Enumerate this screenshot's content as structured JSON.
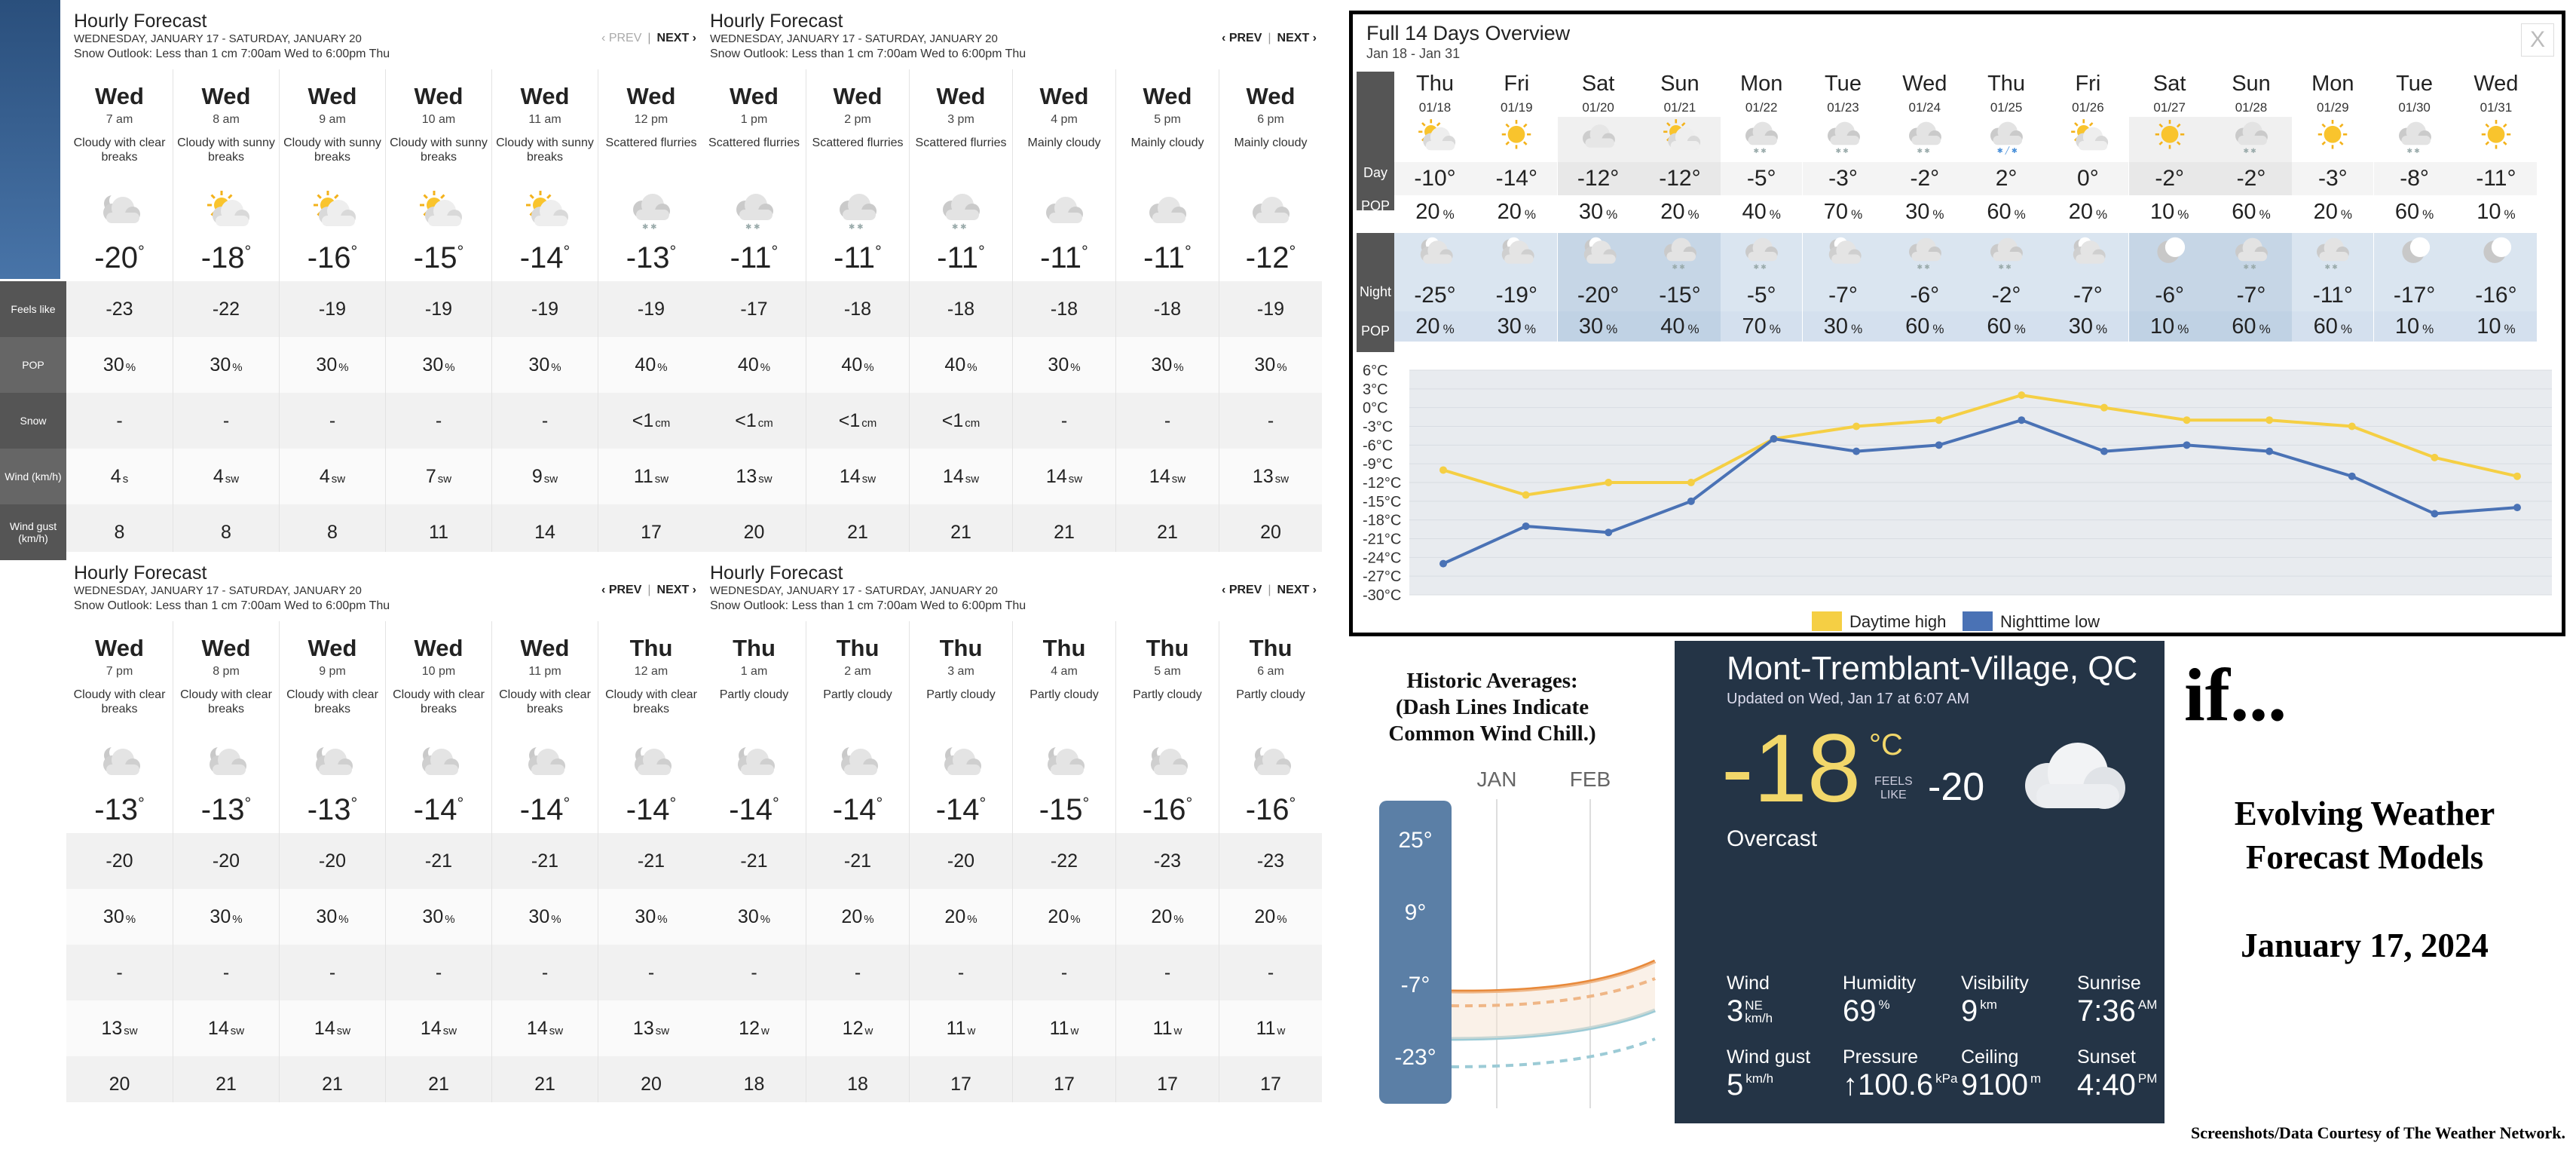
{
  "panel_common": {
    "title": "Hourly Forecast",
    "dates": "WEDNESDAY, JANUARY 17 - SATURDAY, JANUARY 20",
    "snow_outlook": "Snow Outlook: Less than 1 cm 7:00am Wed to 6:00pm Thu",
    "prev": "‹ PREV",
    "next": "NEXT ›",
    "sep": "|"
  },
  "row_labels": {
    "feels_like": "Feels like",
    "pop": "POP",
    "snow": "Snow",
    "wind": "Wind (km/h)",
    "wind_gust": "Wind gust (km/h)"
  },
  "panels": [
    {
      "hours": [
        {
          "day": "Wed",
          "time": "7 am",
          "cond": "Cloudy with clear breaks",
          "icon": "partly-cloudy-night-icon",
          "temp": "-20",
          "feels": "-23",
          "pop": "30",
          "snow": "-",
          "wind": "4",
          "dir": "s",
          "gust": "8"
        },
        {
          "day": "Wed",
          "time": "8 am",
          "cond": "Cloudy with sunny breaks",
          "icon": "partly-sunny-icon",
          "temp": "-18",
          "feels": "-22",
          "pop": "30",
          "snow": "-",
          "wind": "4",
          "dir": "sw",
          "gust": "8"
        },
        {
          "day": "Wed",
          "time": "9 am",
          "cond": "Cloudy with sunny breaks",
          "icon": "partly-sunny-icon",
          "temp": "-16",
          "feels": "-19",
          "pop": "30",
          "snow": "-",
          "wind": "4",
          "dir": "sw",
          "gust": "8"
        },
        {
          "day": "Wed",
          "time": "10 am",
          "cond": "Cloudy with sunny breaks",
          "icon": "partly-sunny-icon",
          "temp": "-15",
          "feels": "-19",
          "pop": "30",
          "snow": "-",
          "wind": "7",
          "dir": "sw",
          "gust": "11"
        },
        {
          "day": "Wed",
          "time": "11 am",
          "cond": "Cloudy with sunny breaks",
          "icon": "partly-sunny-icon",
          "temp": "-14",
          "feels": "-19",
          "pop": "30",
          "snow": "-",
          "wind": "9",
          "dir": "sw",
          "gust": "14"
        },
        {
          "day": "Wed",
          "time": "12 pm",
          "cond": "Scattered flurries",
          "icon": "flurries-icon",
          "temp": "-13",
          "feels": "-19",
          "pop": "40",
          "snow": "<1",
          "snowunit": "cm",
          "wind": "11",
          "dir": "sw",
          "gust": "17"
        }
      ]
    },
    {
      "hours": [
        {
          "day": "Wed",
          "time": "1 pm",
          "cond": "Scattered flurries",
          "icon": "flurries-icon",
          "temp": "-11",
          "feels": "-17",
          "pop": "40",
          "snow": "<1",
          "snowunit": "cm",
          "wind": "13",
          "dir": "sw",
          "gust": "20"
        },
        {
          "day": "Wed",
          "time": "2 pm",
          "cond": "Scattered flurries",
          "icon": "flurries-icon",
          "temp": "-11",
          "feels": "-18",
          "pop": "40",
          "snow": "<1",
          "snowunit": "cm",
          "wind": "14",
          "dir": "sw",
          "gust": "21"
        },
        {
          "day": "Wed",
          "time": "3 pm",
          "cond": "Scattered flurries",
          "icon": "flurries-icon",
          "temp": "-11",
          "feels": "-18",
          "pop": "40",
          "snow": "<1",
          "snowunit": "cm",
          "wind": "14",
          "dir": "sw",
          "gust": "21"
        },
        {
          "day": "Wed",
          "time": "4 pm",
          "cond": "Mainly cloudy",
          "icon": "cloudy-icon",
          "temp": "-11",
          "feels": "-18",
          "pop": "30",
          "snow": "-",
          "wind": "14",
          "dir": "sw",
          "gust": "21"
        },
        {
          "day": "Wed",
          "time": "5 pm",
          "cond": "Mainly cloudy",
          "icon": "cloudy-icon",
          "temp": "-11",
          "feels": "-18",
          "pop": "30",
          "snow": "-",
          "wind": "14",
          "dir": "sw",
          "gust": "21"
        },
        {
          "day": "Wed",
          "time": "6 pm",
          "cond": "Mainly cloudy",
          "icon": "cloudy-icon",
          "temp": "-12",
          "feels": "-19",
          "pop": "30",
          "snow": "-",
          "wind": "13",
          "dir": "sw",
          "gust": "20"
        }
      ]
    },
    {
      "hours": [
        {
          "day": "Wed",
          "time": "7 pm",
          "cond": "Cloudy with clear breaks",
          "icon": "partly-cloudy-night-icon",
          "temp": "-13",
          "feels": "-20",
          "pop": "30",
          "snow": "-",
          "wind": "13",
          "dir": "sw",
          "gust": "20"
        },
        {
          "day": "Wed",
          "time": "8 pm",
          "cond": "Cloudy with clear breaks",
          "icon": "partly-cloudy-night-icon",
          "temp": "-13",
          "feels": "-20",
          "pop": "30",
          "snow": "-",
          "wind": "14",
          "dir": "sw",
          "gust": "21"
        },
        {
          "day": "Wed",
          "time": "9 pm",
          "cond": "Cloudy with clear breaks",
          "icon": "partly-cloudy-night-icon",
          "temp": "-13",
          "feels": "-20",
          "pop": "30",
          "snow": "-",
          "wind": "14",
          "dir": "sw",
          "gust": "21"
        },
        {
          "day": "Wed",
          "time": "10 pm",
          "cond": "Cloudy with clear breaks",
          "icon": "partly-cloudy-night-icon",
          "temp": "-14",
          "feels": "-21",
          "pop": "30",
          "snow": "-",
          "wind": "14",
          "dir": "sw",
          "gust": "21"
        },
        {
          "day": "Wed",
          "time": "11 pm",
          "cond": "Cloudy with clear breaks",
          "icon": "partly-cloudy-night-icon",
          "temp": "-14",
          "feels": "-21",
          "pop": "30",
          "snow": "-",
          "wind": "14",
          "dir": "sw",
          "gust": "21"
        },
        {
          "day": "Thu",
          "time": "12 am",
          "cond": "Cloudy with clear breaks",
          "icon": "partly-cloudy-night-icon",
          "temp": "-14",
          "feels": "-21",
          "pop": "30",
          "snow": "-",
          "wind": "13",
          "dir": "sw",
          "gust": "20"
        }
      ]
    },
    {
      "hours": [
        {
          "day": "Thu",
          "time": "1 am",
          "cond": "Partly cloudy",
          "icon": "partly-cloudy-night-icon",
          "temp": "-14",
          "feels": "-21",
          "pop": "30",
          "snow": "-",
          "wind": "12",
          "dir": "w",
          "gust": "18"
        },
        {
          "day": "Thu",
          "time": "2 am",
          "cond": "Partly cloudy",
          "icon": "partly-cloudy-night-icon",
          "temp": "-14",
          "feels": "-21",
          "pop": "20",
          "snow": "-",
          "wind": "12",
          "dir": "w",
          "gust": "18"
        },
        {
          "day": "Thu",
          "time": "3 am",
          "cond": "Partly cloudy",
          "icon": "partly-cloudy-night-icon",
          "temp": "-14",
          "feels": "-20",
          "pop": "20",
          "snow": "-",
          "wind": "11",
          "dir": "w",
          "gust": "17"
        },
        {
          "day": "Thu",
          "time": "4 am",
          "cond": "Partly cloudy",
          "icon": "partly-cloudy-night-icon",
          "temp": "-15",
          "feels": "-22",
          "pop": "20",
          "snow": "-",
          "wind": "11",
          "dir": "w",
          "gust": "17"
        },
        {
          "day": "Thu",
          "time": "5 am",
          "cond": "Partly cloudy",
          "icon": "partly-cloudy-night-icon",
          "temp": "-16",
          "feels": "-23",
          "pop": "20",
          "snow": "-",
          "wind": "11",
          "dir": "w",
          "gust": "17"
        },
        {
          "day": "Thu",
          "time": "6 am",
          "cond": "Partly cloudy",
          "icon": "partly-cloudy-night-icon",
          "temp": "-16",
          "feels": "-23",
          "pop": "20",
          "snow": "-",
          "wind": "11",
          "dir": "w",
          "gust": "17"
        }
      ]
    }
  ],
  "overview": {
    "title": "Full 14 Days Overview",
    "dates": "Jan 18 - Jan 31",
    "close": "X",
    "labels": {
      "day": "Day",
      "pop": "POP",
      "night": "Night"
    },
    "percent": "%",
    "days": [
      {
        "name": "Thu",
        "date": "01/18",
        "day_icon": "partly-sunny-icon",
        "high": "-10°",
        "day_pop": "20",
        "night_icon": "partly-cloudy-night-icon",
        "low": "-25°",
        "night_pop": "20"
      },
      {
        "name": "Fri",
        "date": "01/19",
        "day_icon": "sunny-icon",
        "high": "-14°",
        "day_pop": "20",
        "night_icon": "partly-cloudy-night-icon",
        "low": "-19°",
        "night_pop": "30"
      },
      {
        "name": "Sat",
        "date": "01/20",
        "day_icon": "cloudy-icon",
        "high": "-12°",
        "day_pop": "30",
        "night_icon": "partly-cloudy-night-icon",
        "low": "-20°",
        "night_pop": "30"
      },
      {
        "name": "Sun",
        "date": "01/21",
        "day_icon": "partly-sunny-icon",
        "high": "-12°",
        "day_pop": "20",
        "night_icon": "flurries-icon",
        "low": "-15°",
        "night_pop": "40"
      },
      {
        "name": "Mon",
        "date": "01/22",
        "day_icon": "flurries-icon",
        "high": "-5°",
        "day_pop": "40",
        "night_icon": "flurries-icon",
        "low": "-5°",
        "night_pop": "70"
      },
      {
        "name": "Tue",
        "date": "01/23",
        "day_icon": "flurries-icon",
        "high": "-3°",
        "day_pop": "70",
        "night_icon": "partly-cloudy-night-icon",
        "low": "-7°",
        "night_pop": "30"
      },
      {
        "name": "Wed",
        "date": "01/24",
        "day_icon": "flurries-icon",
        "high": "-2°",
        "day_pop": "30",
        "night_icon": "flurries-icon",
        "low": "-6°",
        "night_pop": "60"
      },
      {
        "name": "Thu",
        "date": "01/25",
        "day_icon": "rain-snow-icon",
        "high": "2°",
        "day_pop": "60",
        "night_icon": "flurries-icon",
        "low": "-2°",
        "night_pop": "60"
      },
      {
        "name": "Fri",
        "date": "01/26",
        "day_icon": "partly-sunny-icon",
        "high": "0°",
        "day_pop": "20",
        "night_icon": "partly-cloudy-night-icon",
        "low": "-7°",
        "night_pop": "30"
      },
      {
        "name": "Sat",
        "date": "01/27",
        "day_icon": "sunny-icon",
        "high": "-2°",
        "day_pop": "10",
        "night_icon": "clear-night-icon",
        "low": "-6°",
        "night_pop": "10"
      },
      {
        "name": "Sun",
        "date": "01/28",
        "day_icon": "flurries-icon",
        "high": "-2°",
        "day_pop": "60",
        "night_icon": "flurries-icon",
        "low": "-7°",
        "night_pop": "60"
      },
      {
        "name": "Mon",
        "date": "01/29",
        "day_icon": "sunny-icon",
        "high": "-3°",
        "day_pop": "20",
        "night_icon": "flurries-icon",
        "low": "-11°",
        "night_pop": "60"
      },
      {
        "name": "Tue",
        "date": "01/30",
        "day_icon": "flurries-icon",
        "high": "-8°",
        "day_pop": "60",
        "night_icon": "clear-night-icon",
        "low": "-17°",
        "night_pop": "10"
      },
      {
        "name": "Wed",
        "date": "01/31",
        "day_icon": "sunny-icon",
        "high": "-11°",
        "day_pop": "10",
        "night_icon": "clear-night-icon",
        "low": "-16°",
        "night_pop": "10"
      }
    ]
  },
  "chart_data": {
    "type": "line",
    "x": [
      "01/18",
      "01/19",
      "01/20",
      "01/21",
      "01/22",
      "01/23",
      "01/24",
      "01/25",
      "01/26",
      "01/27",
      "01/28",
      "01/29",
      "01/30",
      "01/31"
    ],
    "series": [
      {
        "name": "Daytime high",
        "color": "#f5cf44",
        "values": [
          -10,
          -14,
          -12,
          -12,
          -5,
          -3,
          -2,
          2,
          0,
          -2,
          -2,
          -3,
          -8,
          -11
        ]
      },
      {
        "name": "Nighttime low",
        "color": "#4a72b5",
        "values": [
          -25,
          -19,
          -20,
          -15,
          -5,
          -7,
          -6,
          -2,
          -7,
          -6,
          -7,
          -11,
          -17,
          -16
        ]
      }
    ],
    "yticks": [
      "6°C",
      "3°C",
      "0°C",
      "-3°C",
      "-6°C",
      "-9°C",
      "-12°C",
      "-15°C",
      "-18°C",
      "-21°C",
      "-24°C",
      "-27°C",
      "-30°C"
    ],
    "ylim": [
      -30,
      6
    ],
    "legend": "bottom"
  },
  "historic": {
    "title_lines": [
      "Historic Averages:",
      "(Dash Lines Indicate",
      "Common Wind Chill.)"
    ],
    "months": [
      "JAN",
      "FEB"
    ],
    "scale": [
      "25°",
      "9°",
      "-7°",
      "-23°"
    ]
  },
  "current": {
    "city": "Mont-Tremblant-Village, QC",
    "updated": "Updated on Wed, Jan 17 at 6:07 AM",
    "temp": "-18",
    "unit": "°C",
    "feels_label_1": "FEELS",
    "feels_label_2": "LIKE",
    "feels_value": "-20",
    "condition": "Overcast",
    "stats": [
      {
        "label": "Wind",
        "value": "3",
        "sup": "NE",
        "sub": "km/h"
      },
      {
        "label": "Humidity",
        "value": "69",
        "sup": "%",
        "sub": ""
      },
      {
        "label": "Visibility",
        "value": "9",
        "sup": "km",
        "sub": ""
      },
      {
        "label": "Sunrise",
        "value": "7:36",
        "sup": "AM",
        "sub": ""
      },
      {
        "label": "Wind gust",
        "value": "5",
        "sup": "km/h",
        "sub": ""
      },
      {
        "label": "Pressure",
        "value": "↑100.6",
        "sup": "kPa",
        "sub": ""
      },
      {
        "label": "Ceiling",
        "value": "9100",
        "sup": "m",
        "sub": ""
      },
      {
        "label": "Sunset",
        "value": "4:40",
        "sup": "PM",
        "sub": ""
      }
    ]
  },
  "side": {
    "if": "if...",
    "title_line1": "Evolving Weather",
    "title_line2": "Forecast Models",
    "date": "January 17, 2024",
    "credit": "Screenshots/Data Courtesy of The Weather Network."
  },
  "colors": {
    "high": "#f5cf44",
    "low": "#4a72b5",
    "current_bg": "#243446",
    "temp_yellow": "#f2d76a"
  }
}
